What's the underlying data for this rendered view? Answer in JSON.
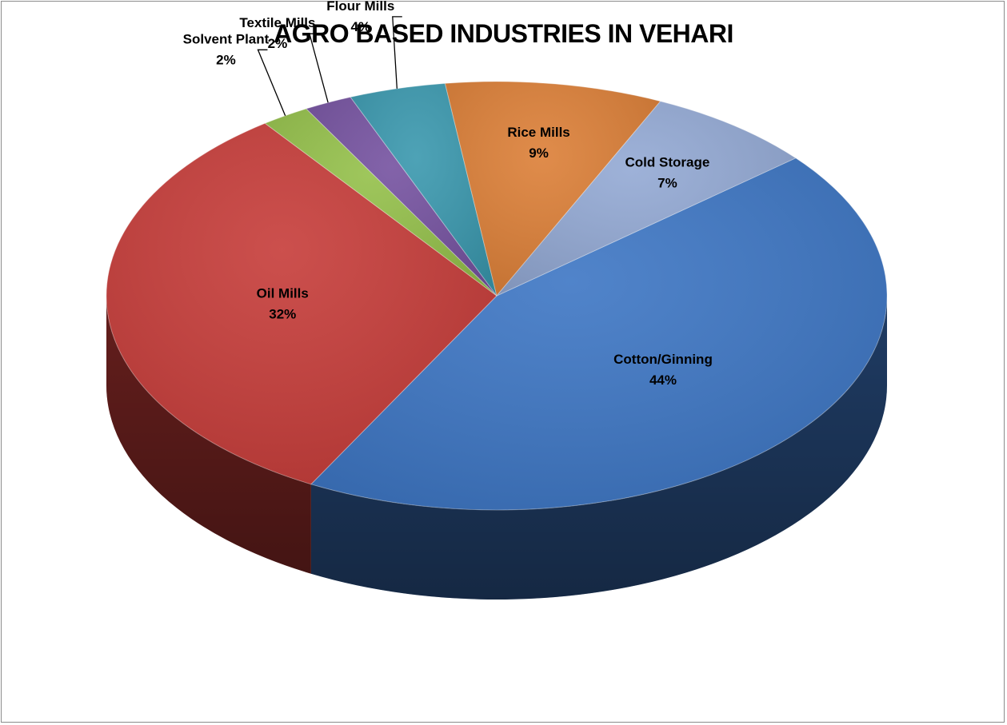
{
  "chart_data": {
    "type": "pie",
    "title": "AGRO BASED INDUSTRIES IN VEHARI",
    "slices": [
      {
        "name": "Cotton/Ginning",
        "value": 44,
        "label": "44%",
        "color": "#3d76c4"
      },
      {
        "name": "Oil Mills",
        "value": 32,
        "label": "32%",
        "color": "#c63c39"
      },
      {
        "name": "Solvent Plant",
        "value": 2,
        "label": "2%",
        "color": "#94c04a"
      },
      {
        "name": "Textile Mills",
        "value": 2,
        "label": "2%",
        "color": "#7552a0"
      },
      {
        "name": "Flour Mills",
        "value": 4,
        "label": "4%",
        "color": "#3a98ae"
      },
      {
        "name": "Rice Mills",
        "value": 9,
        "label": "9%",
        "color": "#dc7f37"
      },
      {
        "name": "Cold Storage",
        "value": 7,
        "label": "7%",
        "color": "#93a9d4"
      }
    ]
  }
}
